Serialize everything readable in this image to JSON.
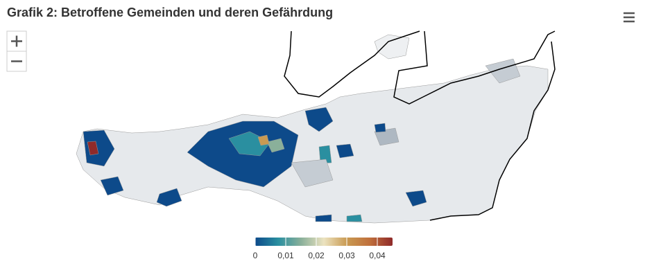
{
  "header": {
    "title": "Grafik 2: Betroffene Gemeinden und deren Gefährdung"
  },
  "colorbar": {
    "range": [
      0,
      0.045
    ],
    "ticks": [
      0,
      {
        "value": 0.01,
        "label": "0,01"
      },
      {
        "value": 0.02,
        "label": "0,02"
      },
      {
        "value": 0.03,
        "label": "0,03"
      },
      {
        "value": 0.04,
        "label": "0,04"
      }
    ],
    "colors": [
      "#0d4a8a",
      "#2a8fa0",
      "#8ab09a",
      "#ece3c0",
      "#c99a52",
      "#c0703c",
      "#8f2a2a"
    ]
  }
}
